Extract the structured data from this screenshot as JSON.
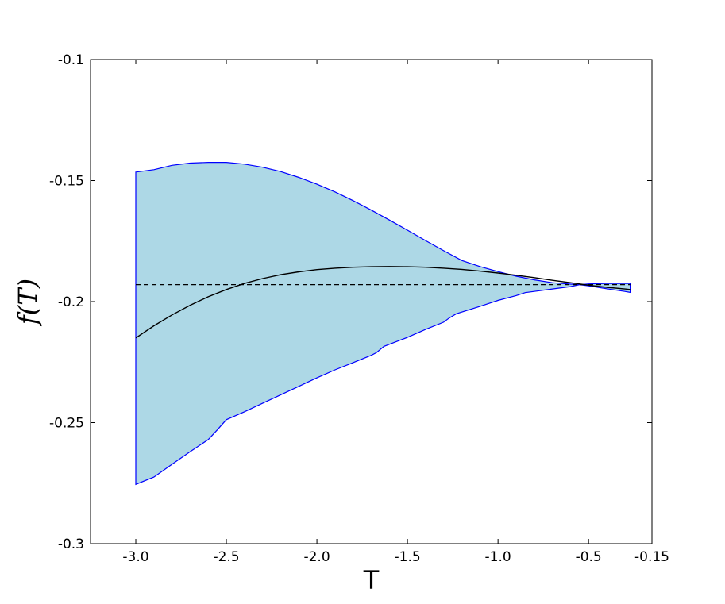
{
  "chart_data": {
    "type": "area",
    "title": "",
    "xlabel": "T",
    "ylabel": "f(T)",
    "xlim": [
      -3.25,
      -0.15
    ],
    "ylim": [
      -0.3,
      -0.1
    ],
    "x_ticks": [
      -3.0,
      -2.5,
      -2.0,
      -1.5,
      -1.0,
      -0.5,
      -0.15
    ],
    "x_tick_labels": [
      "-3.0",
      "-2.5",
      "-2.0",
      "-1.5",
      "-1.0",
      "-0.5",
      "-0.15"
    ],
    "y_ticks": [
      -0.3,
      -0.25,
      -0.2,
      -0.15,
      -0.1
    ],
    "y_tick_labels": [
      "-0.3",
      "-0.25",
      "-0.2",
      "-0.15",
      "-0.1"
    ],
    "grid": false,
    "colors": {
      "band_fill": "#add8e6",
      "band_edge": "#0000ff",
      "mean_line": "#000000",
      "reference_line": "#000000"
    },
    "band_upper": {
      "x": [
        -3.0,
        -2.9,
        -2.8,
        -2.7,
        -2.6,
        -2.5,
        -2.4,
        -2.3,
        -2.2,
        -2.1,
        -2.0,
        -1.9,
        -1.8,
        -1.7,
        -1.6,
        -1.5,
        -1.4,
        -1.3,
        -1.2,
        -1.1,
        -1.0,
        -0.9,
        -0.8,
        -0.7,
        -0.6,
        -0.55,
        -0.5,
        -0.4,
        -0.3,
        -0.27
      ],
      "y": [
        -0.1465,
        -0.1455,
        -0.1437,
        -0.1428,
        -0.1425,
        -0.1425,
        -0.1432,
        -0.1445,
        -0.1463,
        -0.1487,
        -0.1515,
        -0.1547,
        -0.1583,
        -0.1622,
        -0.1663,
        -0.1705,
        -0.1748,
        -0.179,
        -0.183,
        -0.1855,
        -0.1876,
        -0.1895,
        -0.191,
        -0.1922,
        -0.1928,
        -0.193,
        -0.1935,
        -0.1947,
        -0.1958,
        -0.1962
      ]
    },
    "band_lower": {
      "x": [
        -3.0,
        -2.9,
        -2.8,
        -2.7,
        -2.6,
        -2.55,
        -2.5,
        -2.4,
        -2.3,
        -2.2,
        -2.1,
        -2.0,
        -1.9,
        -1.8,
        -1.7,
        -1.67,
        -1.63,
        -1.5,
        -1.4,
        -1.3,
        -1.27,
        -1.23,
        -1.1,
        -1.0,
        -0.9,
        -0.85,
        -0.8,
        -0.7,
        -0.6,
        -0.55,
        -0.5,
        -0.4,
        -0.3,
        -0.27
      ],
      "y": [
        -0.2755,
        -0.2725,
        -0.2672,
        -0.262,
        -0.257,
        -0.253,
        -0.2488,
        -0.2455,
        -0.242,
        -0.2385,
        -0.235,
        -0.2315,
        -0.2282,
        -0.2252,
        -0.2222,
        -0.221,
        -0.2185,
        -0.2148,
        -0.2115,
        -0.2085,
        -0.2068,
        -0.205,
        -0.202,
        -0.1995,
        -0.1975,
        -0.1963,
        -0.1958,
        -0.1948,
        -0.1938,
        -0.193,
        -0.1927,
        -0.1925,
        -0.1925,
        -0.1925
      ]
    },
    "mean_line": {
      "x": [
        -3.0,
        -2.9,
        -2.8,
        -2.7,
        -2.6,
        -2.5,
        -2.4,
        -2.3,
        -2.2,
        -2.1,
        -2.0,
        -1.9,
        -1.8,
        -1.7,
        -1.6,
        -1.5,
        -1.4,
        -1.3,
        -1.2,
        -1.1,
        -1.0,
        -0.9,
        -0.8,
        -0.7,
        -0.6,
        -0.5,
        -0.4,
        -0.3,
        -0.27
      ],
      "y": [
        -0.215,
        -0.21,
        -0.2055,
        -0.2015,
        -0.198,
        -0.195,
        -0.1925,
        -0.1905,
        -0.1889,
        -0.1877,
        -0.1868,
        -0.1862,
        -0.1858,
        -0.1856,
        -0.1855,
        -0.1856,
        -0.1858,
        -0.1862,
        -0.1867,
        -0.1874,
        -0.1882,
        -0.1891,
        -0.1901,
        -0.1912,
        -0.1922,
        -0.1932,
        -0.1941,
        -0.1948,
        -0.195
      ]
    },
    "reference_line": {
      "y": -0.193,
      "x_range": [
        -3.0,
        -0.27
      ],
      "style": "dashed"
    }
  }
}
